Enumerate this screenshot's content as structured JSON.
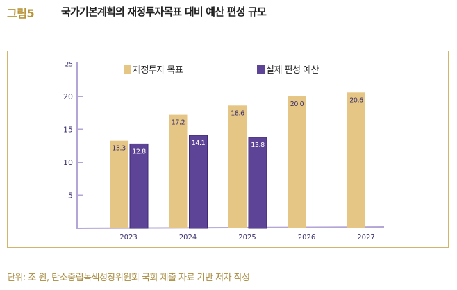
{
  "figure": {
    "label": "그림5",
    "title": "국가기본계획의 재정투자목표 대비 예산 편성 규모"
  },
  "footer": "단위: 조 원, 탄소중립녹색성장위원회 국회 제출 자료 기반 저자 작성",
  "chart_data": {
    "type": "bar",
    "title": "",
    "xlabel": "",
    "ylabel": "",
    "categories": [
      "2023",
      "2024",
      "2025",
      "2026",
      "2027"
    ],
    "series": [
      {
        "name": "재정투자 목표",
        "color": "#e5c684",
        "values": [
          13.3,
          17.2,
          18.6,
          20.0,
          20.6
        ],
        "labels": [
          "13.3",
          "17.2",
          "18.6",
          "20.0",
          "20.6"
        ]
      },
      {
        "name": "실제 편성 예산",
        "color": "#5e4496",
        "values": [
          12.8,
          14.1,
          13.8,
          null,
          null
        ],
        "labels": [
          "12.8",
          "14.1",
          "13.8",
          null,
          null
        ]
      }
    ],
    "ylim": [
      0,
      25
    ],
    "yticks": [
      5,
      10,
      15,
      20,
      25
    ],
    "grid": false,
    "legend": "top",
    "axis_color": "#b3a6d6",
    "tick_label_color": "#3b2f6e"
  }
}
